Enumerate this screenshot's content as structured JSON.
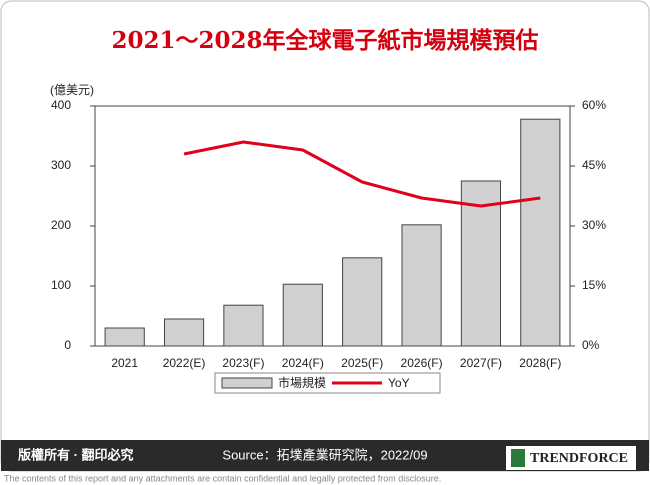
{
  "chart_data": {
    "type": "bar",
    "title": "2021～2028年全球電子紙市場規模預估",
    "ylabel": "(億美元)",
    "categories": [
      "2021",
      "2022(E)",
      "2023(F)",
      "2024(F)",
      "2025(F)",
      "2026(F)",
      "2027(F)",
      "2028(F)"
    ],
    "series": [
      {
        "name": "市場規模",
        "color": "#d0d0d0",
        "values": [
          30,
          45,
          68,
          103,
          147,
          202,
          275,
          378
        ]
      },
      {
        "name": "YoY",
        "type": "line",
        "axis": "y2",
        "color": "#e0001b",
        "values": [
          null,
          48,
          51,
          49,
          41,
          37,
          35,
          37
        ]
      }
    ],
    "ylim": [
      0,
      400
    ],
    "yticks": [
      0,
      100,
      200,
      300,
      400
    ],
    "y2lim": [
      0,
      60
    ],
    "y2ticks": [
      {
        "value": 0,
        "label": "0%"
      },
      {
        "value": 15,
        "label": "15%"
      },
      {
        "value": 30,
        "label": "30%"
      },
      {
        "value": 45,
        "label": "45%"
      },
      {
        "value": 60,
        "label": "60%"
      }
    ],
    "legend": "bottom"
  },
  "footer": {
    "copyright": "版權所有 · 翻印必究",
    "source": "Source：拓墣產業研究院，2022/09",
    "logo": "TRENDFORCE",
    "disclaimer": "The contents of this report and any attachments are contain confidential and legally protected from disclosure."
  }
}
